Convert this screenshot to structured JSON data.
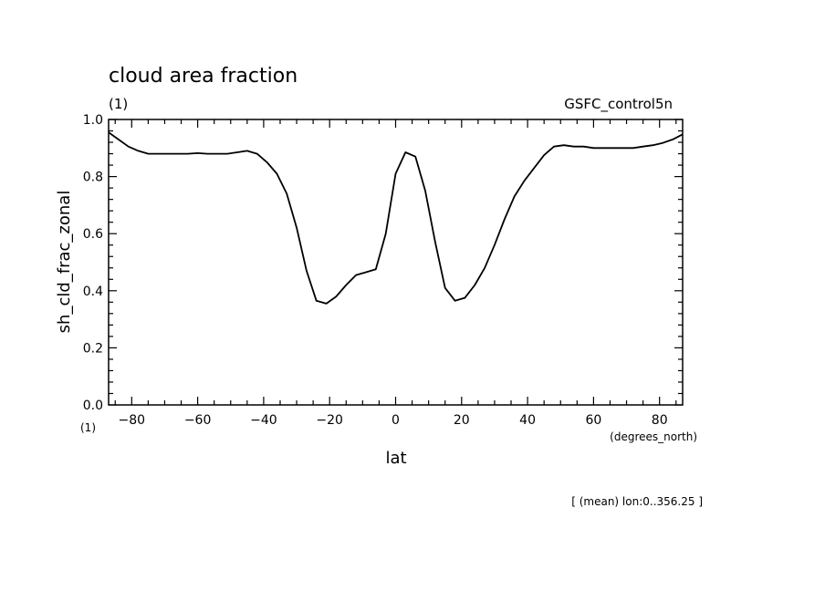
{
  "chart_data": {
    "type": "line",
    "title": "cloud area fraction",
    "units_label": "(1)",
    "dataset_label": "GSFC_control5n",
    "ylabel": "sh_cld_frac_zonal",
    "yunits": "(1)",
    "xlabel": "lat",
    "xunits": "(degrees_north)",
    "footnote": "[ (mean) lon:0..356.25 ]",
    "xlim": [
      -87,
      87
    ],
    "ylim": [
      0.0,
      1.0
    ],
    "xticks": [
      -80,
      -60,
      -40,
      -20,
      0,
      20,
      40,
      60,
      80
    ],
    "xtick_labels": [
      "−80",
      "−60",
      "−40",
      "−20",
      "0",
      "20",
      "40",
      "60",
      "80"
    ],
    "yticks": [
      0.0,
      0.2,
      0.4,
      0.6,
      0.8,
      1.0
    ],
    "ytick_labels": [
      "0.0",
      "0.2",
      "0.4",
      "0.6",
      "0.8",
      "1.0"
    ],
    "series": [
      {
        "x": [
          -87,
          -84,
          -81,
          -78,
          -75,
          -72,
          -69,
          -66,
          -63,
          -60,
          -57,
          -54,
          -51,
          -48,
          -45,
          -42,
          -39,
          -36,
          -33,
          -30,
          -27,
          -24,
          -21,
          -18,
          -15,
          -12,
          -9,
          -6,
          -3,
          0,
          3,
          6,
          9,
          12,
          15,
          18,
          21,
          24,
          27,
          30,
          33,
          36,
          39,
          42,
          45,
          48,
          51,
          54,
          57,
          60,
          63,
          66,
          69,
          72,
          75,
          78,
          81,
          84,
          87
        ],
        "y": [
          0.955,
          0.93,
          0.905,
          0.89,
          0.88,
          0.88,
          0.88,
          0.88,
          0.88,
          0.882,
          0.88,
          0.88,
          0.88,
          0.885,
          0.89,
          0.88,
          0.85,
          0.81,
          0.74,
          0.62,
          0.47,
          0.365,
          0.355,
          0.38,
          0.42,
          0.455,
          0.465,
          0.475,
          0.6,
          0.81,
          0.885,
          0.87,
          0.75,
          0.57,
          0.41,
          0.365,
          0.375,
          0.42,
          0.48,
          0.56,
          0.65,
          0.73,
          0.785,
          0.83,
          0.875,
          0.905,
          0.91,
          0.905,
          0.905,
          0.9,
          0.9,
          0.9,
          0.9,
          0.9,
          0.905,
          0.91,
          0.918,
          0.93,
          0.948
        ]
      }
    ],
    "grid": false,
    "line_color": "#000000"
  }
}
